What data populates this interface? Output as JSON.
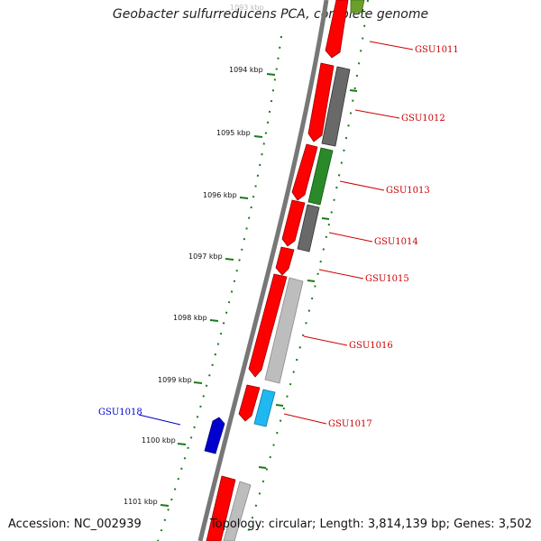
{
  "title": "Geobacter sulfurreducens PCA, complete genome",
  "accession": "Accession: NC_002939",
  "summary": "Topology: circular; Length: 3,814,139 bp; Genes: 3,502",
  "colors": {
    "forward_gene": "#ff0000",
    "reverse_gene": "#696969",
    "highlight_gene": "#0000cc",
    "label_red": "#cc0000",
    "label_blue": "#0000cc",
    "backbone": "#777777",
    "tick": "#1a7a1a"
  },
  "scale": {
    "faded_label": "1093 kbp",
    "labels": [
      "1094 kbp",
      "1095 kbp",
      "1096 kbp",
      "1097 kbp",
      "1098 kbp",
      "1099 kbp",
      "1100 kbp",
      "1101 kbp"
    ]
  },
  "genes": [
    {
      "id": "GSU1011",
      "color_name": "label_red"
    },
    {
      "id": "GSU1012",
      "color_name": "label_red"
    },
    {
      "id": "GSU1013",
      "color_name": "label_red"
    },
    {
      "id": "GSU1014",
      "color_name": "label_red"
    },
    {
      "id": "GSU1015",
      "color_name": "label_red"
    },
    {
      "id": "GSU1016",
      "color_name": "label_red"
    },
    {
      "id": "GSU1017",
      "color_name": "label_red"
    },
    {
      "id": "GSU1018",
      "color_name": "label_blue"
    }
  ]
}
